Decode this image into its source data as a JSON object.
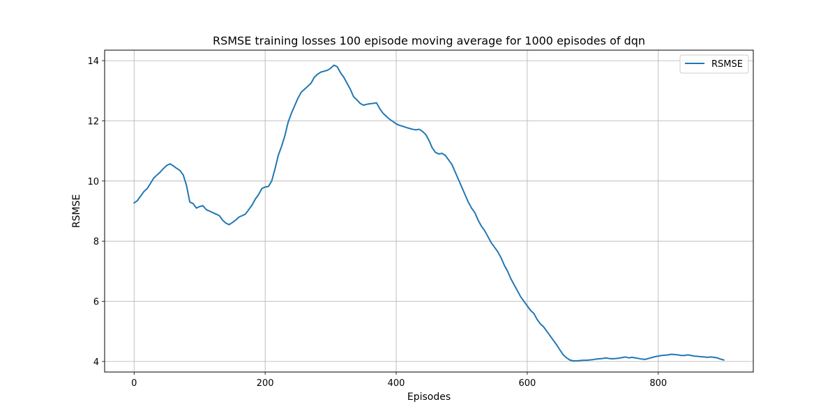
{
  "chart_data": {
    "type": "line",
    "title": "RSMSE training losses 100 episode moving average for 1000 episodes of dqn",
    "xlabel": "Episodes",
    "ylabel": "RSMSE",
    "xlim": [
      -45,
      945
    ],
    "ylim": [
      3.65,
      14.35
    ],
    "x_ticks": [
      0,
      200,
      400,
      600,
      800
    ],
    "y_ticks": [
      4,
      6,
      8,
      10,
      12,
      14
    ],
    "x_tick_labels": [
      "0",
      "200",
      "400",
      "600",
      "800"
    ],
    "y_tick_labels": [
      "4",
      "6",
      "8",
      "10",
      "12",
      "14"
    ],
    "grid": true,
    "legend_position": "top-right",
    "series": [
      {
        "name": "RSMSE",
        "color": "#1f77b4",
        "points": [
          [
            0,
            9.27
          ],
          [
            5,
            9.35
          ],
          [
            10,
            9.5
          ],
          [
            15,
            9.65
          ],
          [
            20,
            9.75
          ],
          [
            25,
            9.92
          ],
          [
            30,
            10.1
          ],
          [
            35,
            10.2
          ],
          [
            40,
            10.3
          ],
          [
            45,
            10.42
          ],
          [
            50,
            10.52
          ],
          [
            55,
            10.57
          ],
          [
            60,
            10.5
          ],
          [
            65,
            10.42
          ],
          [
            70,
            10.35
          ],
          [
            75,
            10.2
          ],
          [
            80,
            9.85
          ],
          [
            85,
            9.3
          ],
          [
            90,
            9.25
          ],
          [
            95,
            9.1
          ],
          [
            100,
            9.15
          ],
          [
            105,
            9.18
          ],
          [
            110,
            9.05
          ],
          [
            115,
            9.0
          ],
          [
            120,
            8.95
          ],
          [
            125,
            8.9
          ],
          [
            130,
            8.85
          ],
          [
            135,
            8.7
          ],
          [
            140,
            8.6
          ],
          [
            145,
            8.55
          ],
          [
            150,
            8.62
          ],
          [
            155,
            8.7
          ],
          [
            160,
            8.8
          ],
          [
            165,
            8.85
          ],
          [
            170,
            8.9
          ],
          [
            175,
            9.05
          ],
          [
            180,
            9.2
          ],
          [
            185,
            9.4
          ],
          [
            190,
            9.55
          ],
          [
            195,
            9.75
          ],
          [
            200,
            9.8
          ],
          [
            205,
            9.82
          ],
          [
            210,
            10.0
          ],
          [
            215,
            10.4
          ],
          [
            220,
            10.85
          ],
          [
            225,
            11.15
          ],
          [
            230,
            11.5
          ],
          [
            235,
            11.95
          ],
          [
            240,
            12.25
          ],
          [
            245,
            12.5
          ],
          [
            250,
            12.75
          ],
          [
            255,
            12.95
          ],
          [
            260,
            13.05
          ],
          [
            265,
            13.15
          ],
          [
            270,
            13.25
          ],
          [
            275,
            13.45
          ],
          [
            280,
            13.55
          ],
          [
            285,
            13.62
          ],
          [
            290,
            13.65
          ],
          [
            295,
            13.68
          ],
          [
            300,
            13.75
          ],
          [
            305,
            13.85
          ],
          [
            310,
            13.8
          ],
          [
            315,
            13.6
          ],
          [
            320,
            13.45
          ],
          [
            325,
            13.25
          ],
          [
            330,
            13.05
          ],
          [
            335,
            12.8
          ],
          [
            340,
            12.7
          ],
          [
            345,
            12.58
          ],
          [
            350,
            12.52
          ],
          [
            355,
            12.55
          ],
          [
            360,
            12.57
          ],
          [
            365,
            12.58
          ],
          [
            370,
            12.6
          ],
          [
            375,
            12.4
          ],
          [
            380,
            12.25
          ],
          [
            385,
            12.15
          ],
          [
            390,
            12.05
          ],
          [
            395,
            11.98
          ],
          [
            400,
            11.9
          ],
          [
            405,
            11.85
          ],
          [
            410,
            11.82
          ],
          [
            415,
            11.78
          ],
          [
            420,
            11.75
          ],
          [
            425,
            11.72
          ],
          [
            430,
            11.7
          ],
          [
            435,
            11.72
          ],
          [
            440,
            11.65
          ],
          [
            445,
            11.55
          ],
          [
            450,
            11.35
          ],
          [
            455,
            11.1
          ],
          [
            460,
            10.95
          ],
          [
            465,
            10.9
          ],
          [
            470,
            10.92
          ],
          [
            475,
            10.85
          ],
          [
            480,
            10.7
          ],
          [
            485,
            10.55
          ],
          [
            490,
            10.3
          ],
          [
            495,
            10.05
          ],
          [
            500,
            9.8
          ],
          [
            505,
            9.55
          ],
          [
            510,
            9.3
          ],
          [
            515,
            9.1
          ],
          [
            520,
            8.95
          ],
          [
            525,
            8.7
          ],
          [
            530,
            8.5
          ],
          [
            535,
            8.35
          ],
          [
            540,
            8.15
          ],
          [
            545,
            7.95
          ],
          [
            550,
            7.8
          ],
          [
            555,
            7.65
          ],
          [
            560,
            7.45
          ],
          [
            565,
            7.2
          ],
          [
            570,
            7.0
          ],
          [
            575,
            6.75
          ],
          [
            580,
            6.55
          ],
          [
            585,
            6.35
          ],
          [
            590,
            6.15
          ],
          [
            595,
            6.0
          ],
          [
            600,
            5.85
          ],
          [
            605,
            5.7
          ],
          [
            610,
            5.6
          ],
          [
            615,
            5.4
          ],
          [
            620,
            5.25
          ],
          [
            625,
            5.15
          ],
          [
            630,
            5.0
          ],
          [
            635,
            4.85
          ],
          [
            640,
            4.7
          ],
          [
            645,
            4.55
          ],
          [
            650,
            4.38
          ],
          [
            655,
            4.22
          ],
          [
            660,
            4.12
          ],
          [
            665,
            4.05
          ],
          [
            670,
            4.02
          ],
          [
            675,
            4.02
          ],
          [
            680,
            4.03
          ],
          [
            685,
            4.04
          ],
          [
            690,
            4.04
          ],
          [
            695,
            4.05
          ],
          [
            700,
            4.06
          ],
          [
            705,
            4.08
          ],
          [
            710,
            4.09
          ],
          [
            715,
            4.1
          ],
          [
            720,
            4.12
          ],
          [
            725,
            4.1
          ],
          [
            730,
            4.09
          ],
          [
            735,
            4.1
          ],
          [
            740,
            4.11
          ],
          [
            745,
            4.13
          ],
          [
            750,
            4.15
          ],
          [
            755,
            4.12
          ],
          [
            760,
            4.14
          ],
          [
            765,
            4.12
          ],
          [
            770,
            4.1
          ],
          [
            775,
            4.08
          ],
          [
            780,
            4.07
          ],
          [
            785,
            4.1
          ],
          [
            790,
            4.13
          ],
          [
            795,
            4.16
          ],
          [
            800,
            4.18
          ],
          [
            805,
            4.2
          ],
          [
            810,
            4.21
          ],
          [
            815,
            4.22
          ],
          [
            820,
            4.24
          ],
          [
            825,
            4.23
          ],
          [
            830,
            4.22
          ],
          [
            835,
            4.2
          ],
          [
            840,
            4.2
          ],
          [
            845,
            4.22
          ],
          [
            850,
            4.2
          ],
          [
            855,
            4.18
          ],
          [
            860,
            4.17
          ],
          [
            865,
            4.16
          ],
          [
            870,
            4.15
          ],
          [
            875,
            4.14
          ],
          [
            880,
            4.15
          ],
          [
            885,
            4.14
          ],
          [
            890,
            4.12
          ],
          [
            895,
            4.08
          ],
          [
            900,
            4.05
          ]
        ]
      }
    ]
  }
}
